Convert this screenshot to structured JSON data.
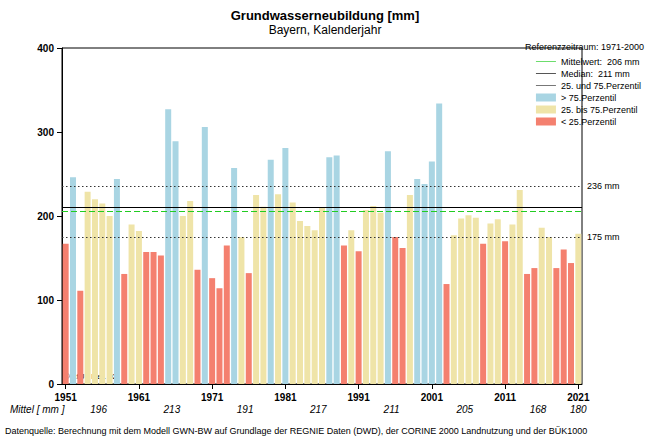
{
  "chart_data": {
    "type": "bar",
    "title": "Grundwasserneubildung [mm]",
    "subtitle": "Bayern, Kalenderjahr",
    "x": [
      1951,
      1952,
      1953,
      1954,
      1955,
      1956,
      1957,
      1958,
      1959,
      1960,
      1961,
      1962,
      1963,
      1964,
      1965,
      1966,
      1967,
      1968,
      1969,
      1970,
      1971,
      1972,
      1973,
      1974,
      1975,
      1976,
      1977,
      1978,
      1979,
      1980,
      1981,
      1982,
      1983,
      1984,
      1985,
      1986,
      1987,
      1988,
      1989,
      1990,
      1991,
      1992,
      1993,
      1994,
      1995,
      1996,
      1997,
      1998,
      1999,
      2000,
      2001,
      2002,
      2003,
      2004,
      2005,
      2006,
      2007,
      2008,
      2009,
      2010,
      2011,
      2012,
      2013,
      2014,
      2015,
      2016,
      2017,
      2018,
      2019,
      2020,
      2021
    ],
    "xlim": [
      1950.5,
      2021.5
    ],
    "xticks": [
      1951,
      1961,
      1971,
      1981,
      1991,
      2001,
      2011,
      2021
    ],
    "ylim": [
      0,
      400
    ],
    "yticks": [
      0,
      100,
      200,
      300,
      400
    ],
    "grid": false,
    "legend": "top-right",
    "stacked": false,
    "series": [
      {
        "name": "> 75.Perzentil",
        "color": "#a9d5e3",
        "values": [
          null,
          246,
          null,
          null,
          null,
          null,
          null,
          244,
          null,
          null,
          null,
          null,
          null,
          null,
          327,
          289,
          null,
          null,
          null,
          306,
          null,
          null,
          null,
          257,
          null,
          null,
          null,
          null,
          267,
          null,
          281,
          null,
          null,
          null,
          null,
          null,
          270,
          272,
          null,
          null,
          null,
          null,
          null,
          null,
          277,
          null,
          null,
          null,
          244,
          238,
          265,
          334,
          null,
          null,
          null,
          null,
          null,
          null,
          null,
          null,
          null,
          null,
          null,
          null,
          null,
          null,
          null,
          null,
          null,
          null,
          null
        ]
      },
      {
        "name": "25. bis 75.Perzentil",
        "color": "#efe4a8",
        "values": [
          null,
          null,
          null,
          229,
          220,
          215,
          200,
          null,
          null,
          190,
          182,
          null,
          null,
          null,
          null,
          null,
          200,
          218,
          null,
          null,
          null,
          null,
          null,
          null,
          175,
          null,
          225,
          211,
          null,
          226,
          null,
          216,
          194,
          188,
          183,
          210,
          null,
          null,
          null,
          183,
          null,
          207,
          212,
          204,
          null,
          null,
          null,
          225,
          null,
          null,
          null,
          null,
          null,
          177,
          197,
          201,
          198,
          null,
          191,
          196,
          null,
          190,
          231,
          null,
          null,
          186,
          175,
          null,
          null,
          null,
          179
        ]
      },
      {
        "name": "< 25.Perzentil",
        "color": "#f4806f",
        "values": [
          167,
          null,
          111,
          null,
          null,
          null,
          null,
          null,
          131,
          null,
          null,
          157,
          157,
          153,
          null,
          null,
          null,
          null,
          136,
          null,
          126,
          114,
          165,
          null,
          null,
          132,
          null,
          null,
          null,
          null,
          null,
          null,
          null,
          null,
          null,
          null,
          null,
          null,
          165,
          null,
          158,
          null,
          null,
          null,
          null,
          175,
          162,
          null,
          null,
          null,
          null,
          null,
          119,
          null,
          null,
          null,
          null,
          167,
          null,
          null,
          170,
          null,
          null,
          131,
          138,
          null,
          null,
          138,
          160,
          144,
          null
        ]
      }
    ],
    "reference_period": "Referenzzeitraum: 1971-2000",
    "reference_lines": [
      {
        "name": "Mittelwert:  206 mm",
        "color": "#22cc22",
        "line_style": "dashed",
        "values": [
          {
            "value": 206
          }
        ]
      },
      {
        "name": "Median:  211 mm",
        "color": "#000000",
        "line_style": "solid",
        "values": [
          {
            "value": 211
          }
        ]
      },
      {
        "name": "25. und 75.Perzentil",
        "color": "#333333",
        "line_style": "dotted",
        "values": [
          {
            "value": 175,
            "label": "175 mm"
          },
          {
            "value": 236,
            "label": "236 mm"
          }
        ]
      }
    ],
    "decade_means": {
      "label": "Mittel [ mm ]",
      "x": [
        1955.5,
        1965.5,
        1975.5,
        1985.5,
        1995.5,
        2005.5,
        2015.5,
        2021
      ],
      "values": [
        196,
        213,
        191,
        217,
        211,
        205,
        168,
        180
      ]
    },
    "annotations": [
      "© LfU / Ref. 92"
    ],
    "footnote": "Datenquelle: Berechnung mit dem Modell GWN-BW auf Grundlage der REGNIE Daten (DWD), der CORINE 2000 Landnutzung und der BÜK1000"
  }
}
